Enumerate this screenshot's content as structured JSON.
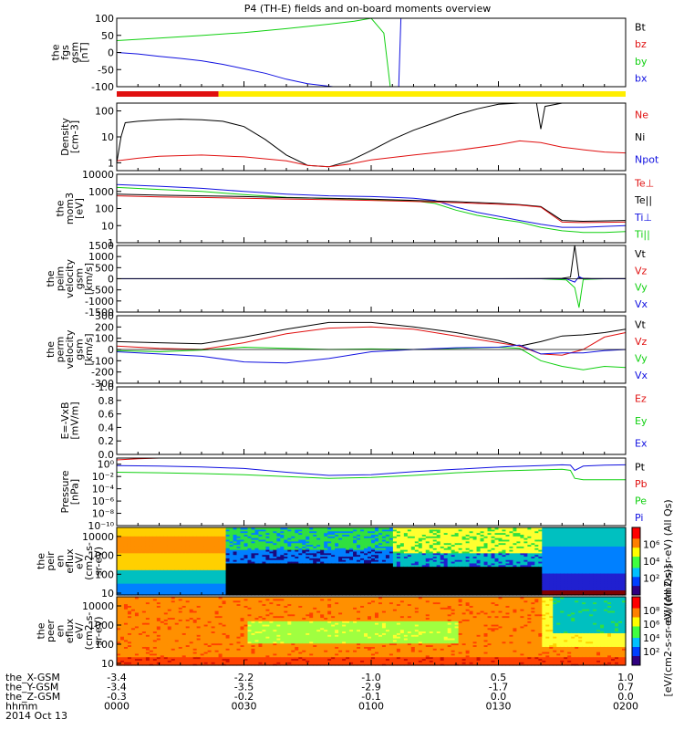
{
  "title": "P4 (TH-E) fields and on-board moments overview",
  "colors": {
    "black": "#000000",
    "red": "#e01010",
    "green": "#10d010",
    "blue": "#1010e0",
    "yellow": "#ffee00"
  },
  "footer": {
    "row_labels": [
      "the_X-GSM",
      "the_Y-GSM",
      "the_Z-GSM",
      "hhmm",
      "2014 Oct 13"
    ],
    "columns": [
      {
        "x": "-3.4",
        "y": "-3.4",
        "z": "-0.3",
        "t": "0000"
      },
      {
        "x": "-2.2",
        "y": "-3.5",
        "z": "-0.2",
        "t": "0030"
      },
      {
        "x": "-1.0",
        "y": "-2.9",
        "z": "-0.1",
        "t": "0100"
      },
      {
        "x": "0.5",
        "y": "-1.7",
        "z": "0.0",
        "t": "0130"
      },
      {
        "x": "1.0",
        "y": "0.7",
        "z": "0.0",
        "t": "0200"
      }
    ]
  },
  "colorbar": {
    "label_top": "eV/(cm2-s-sr-eV) (All Qs)",
    "label_bottom": "[eV/(cm2-s-sr-eV) (All Qs)]",
    "ticks_top": [
      "10⁶",
      "10⁴",
      "10²"
    ],
    "ticks_bottom": [
      "10⁸",
      "10⁶",
      "10⁴",
      "10²"
    ]
  },
  "chart_data": [
    {
      "type": "line",
      "id": "fgs",
      "ylabel": [
        "the",
        "fgs",
        "gsm",
        "[nT]"
      ],
      "yticks": [
        "100",
        "50",
        "0",
        "-50",
        "-100"
      ],
      "ylim": [
        -120,
        110
      ],
      "legend": [
        {
          "name": "Bt",
          "color": "black"
        },
        {
          "name": "bz",
          "color": "red"
        },
        {
          "name": "by",
          "color": "green"
        },
        {
          "name": "bx",
          "color": "blue"
        }
      ],
      "series": [
        {
          "name": "by",
          "color": "green",
          "x": [
            0,
            10,
            20,
            30,
            40,
            50,
            56,
            60,
            63,
            64.5
          ],
          "y": [
            35,
            43,
            52,
            62,
            75,
            90,
            100,
            110,
            60,
            -120
          ]
        },
        {
          "name": "bx",
          "color": "blue",
          "x": [
            0,
            5,
            10,
            15,
            20,
            25,
            30,
            35,
            40,
            45,
            51,
            60,
            63.2,
            63.4,
            64,
            66.5,
            67
          ],
          "y": [
            -5,
            -10,
            -18,
            -25,
            -33,
            -45,
            -60,
            -75,
            -95,
            -110,
            -120,
            -120,
            -120,
            -120,
            -120,
            -120,
            110
          ]
        }
      ],
      "bar": [
        {
          "from": 0,
          "to": 24,
          "color": "red"
        },
        {
          "from": 24,
          "to": 120,
          "color": "yellow"
        }
      ]
    },
    {
      "type": "line",
      "id": "density",
      "ylog": true,
      "ylabel": [
        "Density",
        "[cm-3]"
      ],
      "yticks": [
        "100",
        "10",
        "1"
      ],
      "ylim": [
        0.5,
        200
      ],
      "legend": [
        {
          "name": "Ne",
          "color": "red"
        },
        {
          "name": "Ni",
          "color": "black"
        },
        {
          "name": "Npot",
          "color": "blue"
        }
      ],
      "series": [
        {
          "name": "Ni",
          "color": "black",
          "x": [
            0,
            1,
            2,
            5,
            10,
            15,
            20,
            25,
            30,
            35,
            40,
            45,
            50,
            55,
            60,
            65,
            70,
            75,
            80,
            85,
            90,
            95,
            99,
            100,
            101,
            105,
            110,
            115,
            120
          ],
          "y": [
            1,
            10,
            35,
            40,
            45,
            48,
            46,
            40,
            25,
            8,
            2,
            0.8,
            0.7,
            1.2,
            3,
            8,
            18,
            35,
            70,
            120,
            180,
            220,
            240,
            20,
            150,
            200,
            220,
            230,
            240
          ]
        },
        {
          "name": "Ne",
          "color": "red",
          "x": [
            0,
            5,
            10,
            20,
            30,
            40,
            45,
            50,
            55,
            60,
            70,
            80,
            90,
            95,
            100,
            105,
            110,
            115,
            120
          ],
          "y": [
            1.2,
            1.5,
            1.8,
            2,
            1.7,
            1.2,
            0.8,
            0.7,
            0.9,
            1.3,
            2,
            3,
            5,
            7,
            6,
            4,
            3.2,
            2.6,
            2.4
          ]
        }
      ]
    },
    {
      "type": "line",
      "id": "temp",
      "ylog": true,
      "ylabel": [
        "the",
        "mom3",
        "[eV]"
      ],
      "yticks": [
        "10000",
        "1000",
        "100",
        "10",
        "1"
      ],
      "ylim": [
        1,
        10000
      ],
      "legend": [
        {
          "name": "Te⊥",
          "color": "red"
        },
        {
          "name": "Te||",
          "color": "black"
        },
        {
          "name": "Ti⊥",
          "color": "blue"
        },
        {
          "name": "Ti||",
          "color": "green"
        }
      ],
      "series": [
        {
          "name": "Ti⊥",
          "color": "blue",
          "x": [
            0,
            10,
            20,
            30,
            40,
            50,
            60,
            65,
            70,
            75,
            80,
            85,
            90,
            95,
            100,
            105,
            110,
            115,
            120
          ],
          "y": [
            2500,
            2000,
            1500,
            1000,
            700,
            550,
            500,
            450,
            400,
            300,
            120,
            60,
            35,
            20,
            12,
            8,
            8,
            9,
            10
          ]
        },
        {
          "name": "Ti||",
          "color": "green",
          "x": [
            0,
            10,
            20,
            30,
            40,
            50,
            60,
            65,
            70,
            75,
            80,
            85,
            90,
            95,
            100,
            105,
            110,
            115,
            120
          ],
          "y": [
            1700,
            1300,
            1000,
            650,
            450,
            380,
            330,
            300,
            280,
            200,
            80,
            40,
            24,
            16,
            8,
            5,
            4,
            4,
            4.5
          ]
        },
        {
          "name": "Te||",
          "color": "black",
          "x": [
            0,
            10,
            20,
            30,
            40,
            50,
            60,
            70,
            80,
            90,
            95,
            100,
            105,
            110,
            120
          ],
          "y": [
            700,
            600,
            550,
            500,
            430,
            400,
            350,
            300,
            250,
            200,
            170,
            130,
            20,
            18,
            20
          ]
        },
        {
          "name": "Te⊥",
          "color": "red",
          "x": [
            0,
            10,
            20,
            30,
            40,
            50,
            60,
            70,
            80,
            90,
            95,
            100,
            105,
            110,
            120
          ],
          "y": [
            550,
            480,
            440,
            400,
            360,
            330,
            300,
            260,
            220,
            180,
            160,
            120,
            16,
            15,
            16
          ]
        }
      ]
    },
    {
      "type": "line",
      "id": "peim",
      "ylabel": [
        "the",
        "peim",
        "velocity",
        "gsm",
        "[km/s]"
      ],
      "yticks": [
        "1500",
        "1000",
        "500",
        "0",
        "-500",
        "-1000",
        "-1500"
      ],
      "ylim": [
        -1500,
        1500
      ],
      "legend": [
        {
          "name": "Vt",
          "color": "black"
        },
        {
          "name": "Vz",
          "color": "red"
        },
        {
          "name": "Vy",
          "color": "green"
        },
        {
          "name": "Vx",
          "color": "blue"
        }
      ],
      "series": [
        {
          "name": "Vt",
          "color": "black",
          "x": [
            0,
            90,
            100,
            105,
            107,
            108,
            109,
            110,
            112,
            120
          ],
          "y": [
            5,
            5,
            10,
            20,
            80,
            1500,
            50,
            20,
            10,
            10
          ]
        },
        {
          "name": "Vy",
          "color": "green",
          "x": [
            0,
            100,
            106,
            108,
            109,
            110,
            115,
            120
          ],
          "y": [
            0,
            0,
            -50,
            -400,
            -1300,
            -30,
            0,
            0
          ]
        },
        {
          "name": "Vx",
          "color": "blue",
          "x": [
            0,
            106,
            108,
            109,
            110,
            120
          ],
          "y": [
            0,
            0,
            -150,
            100,
            0,
            0
          ]
        }
      ]
    },
    {
      "type": "line",
      "id": "perm",
      "ylabel": [
        "the",
        "perm",
        "velocity",
        "gsm",
        "[km/s]"
      ],
      "yticks": [
        "300",
        "200",
        "100",
        "0",
        "-100",
        "-200",
        "-300"
      ],
      "ylim": [
        -300,
        300
      ],
      "legend": [
        {
          "name": "Vt",
          "color": "black"
        },
        {
          "name": "Vz",
          "color": "red"
        },
        {
          "name": "Vy",
          "color": "green"
        },
        {
          "name": "Vx",
          "color": "blue"
        }
      ],
      "series": [
        {
          "name": "Vt",
          "color": "black",
          "x": [
            0,
            10,
            20,
            30,
            40,
            50,
            60,
            70,
            80,
            90,
            95,
            100,
            105,
            110,
            115,
            120
          ],
          "y": [
            70,
            60,
            50,
            110,
            180,
            240,
            240,
            200,
            150,
            80,
            30,
            70,
            120,
            130,
            150,
            180
          ]
        },
        {
          "name": "Vz",
          "color": "red",
          "x": [
            0,
            10,
            20,
            30,
            40,
            50,
            60,
            70,
            80,
            90,
            95,
            100,
            105,
            110,
            115,
            120
          ],
          "y": [
            30,
            10,
            0,
            60,
            140,
            190,
            200,
            180,
            120,
            60,
            30,
            -40,
            -50,
            0,
            110,
            150
          ]
        },
        {
          "name": "Vy",
          "color": "green",
          "x": [
            0,
            10,
            20,
            30,
            40,
            50,
            60,
            70,
            80,
            90,
            95,
            100,
            105,
            110,
            115,
            120
          ],
          "y": [
            -10,
            -20,
            -5,
            20,
            10,
            0,
            5,
            0,
            10,
            20,
            10,
            -100,
            -150,
            -180,
            -150,
            -160
          ]
        },
        {
          "name": "Vx",
          "color": "blue",
          "x": [
            0,
            10,
            20,
            30,
            40,
            50,
            60,
            70,
            80,
            90,
            95,
            100,
            105,
            110,
            115,
            120
          ],
          "y": [
            -20,
            -40,
            -60,
            -110,
            -120,
            -80,
            -20,
            0,
            15,
            20,
            40,
            -40,
            -30,
            -30,
            -10,
            0
          ]
        }
      ]
    },
    {
      "type": "line",
      "id": "efield",
      "ylabel": [
        "E=-VxB",
        "[mV/m]"
      ],
      "yticks": [
        "1.0",
        "0.8",
        "0.6",
        "0.4",
        "0.2",
        "0.0"
      ],
      "ylim": [
        0,
        1
      ],
      "legend": [
        {
          "name": "Ez",
          "color": "red"
        },
        {
          "name": "Ey",
          "color": "green"
        },
        {
          "name": "Ex",
          "color": "blue"
        }
      ],
      "series": []
    },
    {
      "type": "line",
      "id": "pressure",
      "ylog": true,
      "ylabel": [
        "Pressure",
        "[nPa]"
      ],
      "yticks": [
        "10⁰",
        "10⁻²",
        "10⁻⁴",
        "10⁻⁶",
        "10⁻⁸",
        "10⁻¹⁰"
      ],
      "ylim": [
        1e-10,
        10
      ],
      "legend": [
        {
          "name": "Pt",
          "color": "black"
        },
        {
          "name": "Pb",
          "color": "red"
        },
        {
          "name": "Pe",
          "color": "green"
        },
        {
          "name": "Pi",
          "color": "blue"
        }
      ],
      "series": [
        {
          "name": "Pt",
          "color": "black",
          "x": [
            0,
            10,
            20,
            25
          ],
          "y": [
            10,
            10,
            10,
            10
          ]
        },
        {
          "name": "Pb",
          "color": "red",
          "x": [
            0,
            5,
            10,
            15,
            20,
            25
          ],
          "y": [
            5,
            8,
            10,
            12,
            15,
            18
          ]
        },
        {
          "name": "Pi",
          "color": "blue",
          "x": [
            0,
            10,
            20,
            30,
            40,
            50,
            60,
            70,
            80,
            90,
            100,
            105,
            107,
            108,
            110,
            115,
            120
          ],
          "y": [
            0.6,
            0.5,
            0.35,
            0.2,
            0.05,
            0.015,
            0.02,
            0.06,
            0.15,
            0.35,
            0.6,
            0.8,
            0.7,
            0.1,
            0.5,
            0.7,
            0.8
          ]
        },
        {
          "name": "Pe",
          "color": "green",
          "x": [
            0,
            10,
            20,
            30,
            40,
            50,
            60,
            70,
            80,
            90,
            100,
            105,
            107,
            108,
            110,
            115,
            120
          ],
          "y": [
            0.05,
            0.04,
            0.03,
            0.02,
            0.01,
            0.005,
            0.007,
            0.015,
            0.04,
            0.08,
            0.12,
            0.15,
            0.1,
            0.005,
            0.003,
            0.003,
            0.003
          ]
        }
      ]
    },
    {
      "type": "heatmap",
      "id": "peir",
      "ylog": true,
      "ylabel": [
        "the",
        "peir",
        "en",
        "eflux",
        "eV/",
        "(cm2-s-",
        "sr-eV)"
      ],
      "yticks": [
        "10000",
        "1000",
        "100",
        "10"
      ],
      "ylim": [
        8,
        30000
      ]
    },
    {
      "type": "heatmap",
      "id": "peer",
      "ylog": true,
      "ylabel": [
        "the",
        "peer",
        "en",
        "eflux",
        "eV/",
        "(cm2-s-",
        "sr-eV)"
      ],
      "yticks": [
        "10000",
        "1000",
        "100",
        "10"
      ],
      "ylim": [
        8,
        30000
      ]
    }
  ]
}
